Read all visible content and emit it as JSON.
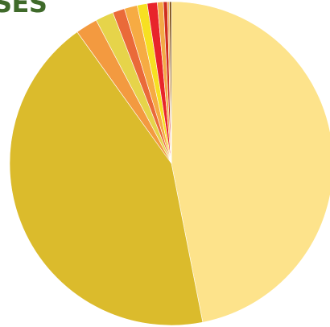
{
  "chart_data": {
    "type": "pie",
    "title": "SES",
    "start_angle_deg": 0,
    "direction": "clockwise",
    "slices": [
      {
        "value": 46.9,
        "color": "#fde38b"
      },
      {
        "value": 43.2,
        "color": "#dbbb2c"
      },
      {
        "value": 2.2,
        "color": "#f39a40"
      },
      {
        "value": 1.8,
        "color": "#e6d44a"
      },
      {
        "value": 1.2,
        "color": "#ea6a39"
      },
      {
        "value": 1.3,
        "color": "#f6ab43"
      },
      {
        "value": 1.0,
        "color": "#f7e022"
      },
      {
        "value": 1.0,
        "color": "#e8242b"
      },
      {
        "value": 0.6,
        "color": "#f3aa46"
      },
      {
        "value": 0.4,
        "color": "#cf2e20"
      },
      {
        "value": 0.2,
        "color": "#f5b25c"
      },
      {
        "value": 0.2,
        "color": "#7a4a12"
      }
    ]
  }
}
